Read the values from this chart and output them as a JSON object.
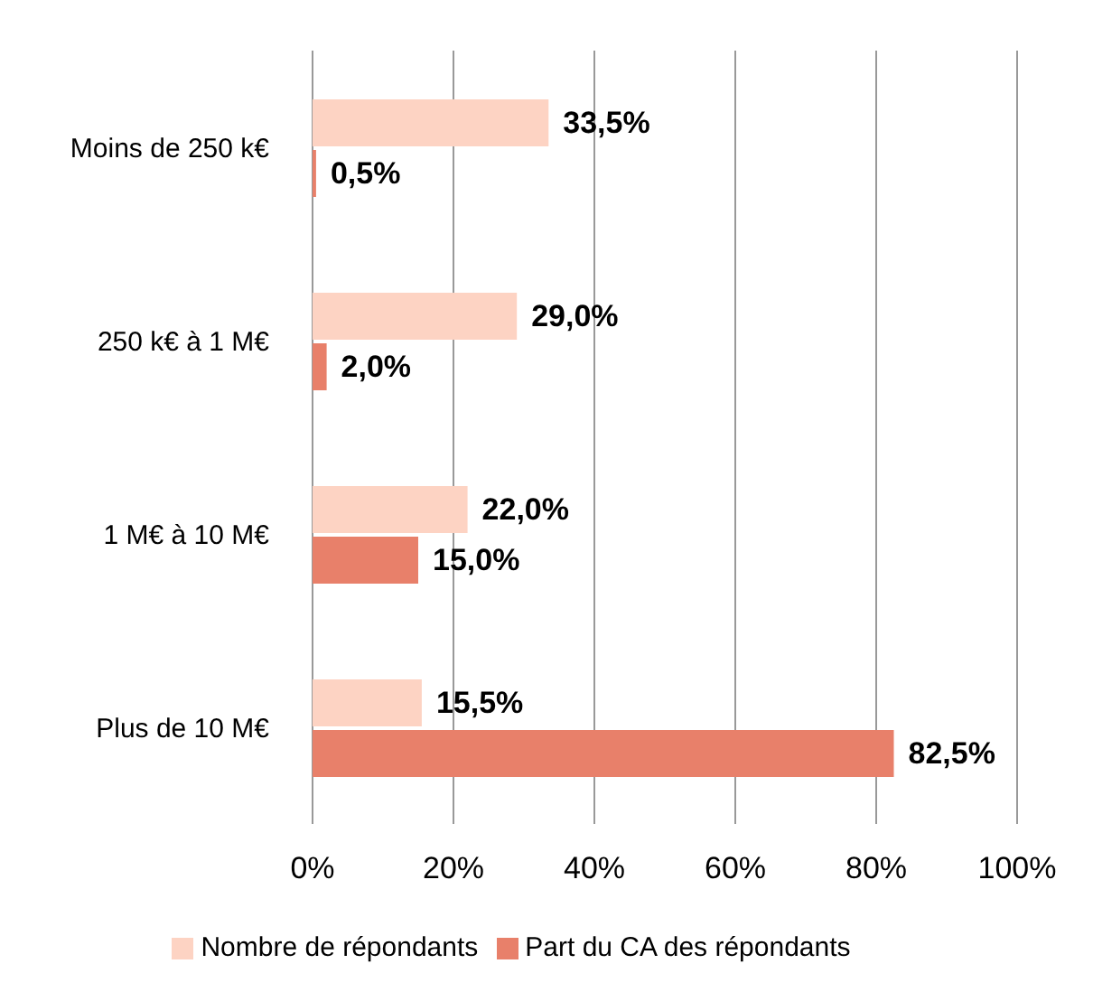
{
  "chart_data": {
    "type": "bar",
    "orientation": "horizontal",
    "categories": [
      "Moins de 250 k€",
      "250 k€ à 1 M€",
      "1 M€ à 10 M€",
      "Plus de 10 M€"
    ],
    "series": [
      {
        "name": "Nombre de répondants",
        "color": "#fdd3c3",
        "values": [
          33.5,
          29.0,
          22.0,
          15.5
        ],
        "value_labels": [
          "33,5%",
          "29,0%",
          "22,0%",
          "15,5%"
        ]
      },
      {
        "name": "Part du CA des répondants",
        "color": "#e8806a",
        "values": [
          0.5,
          2.0,
          15.0,
          82.5
        ],
        "value_labels": [
          "0,5%",
          "2,0%",
          "15,0%",
          "82,5%"
        ]
      }
    ],
    "xlim": [
      0,
      100
    ],
    "xticks": [
      {
        "value": 0,
        "label": "0%"
      },
      {
        "value": 20,
        "label": "20%"
      },
      {
        "value": 40,
        "label": "40%"
      },
      {
        "value": 60,
        "label": "60%"
      },
      {
        "value": 80,
        "label": "80%"
      },
      {
        "value": 100,
        "label": "100%"
      }
    ],
    "grid": "x",
    "legend": "bottom"
  }
}
